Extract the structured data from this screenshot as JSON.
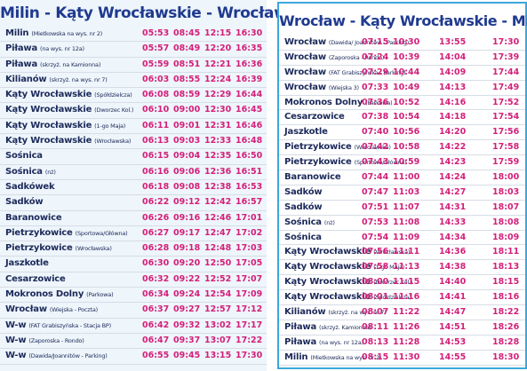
{
  "left": {
    "title": "Milin - Kąty Wrocławskie - Wrocław",
    "rows": [
      {
        "stop": "Milin",
        "detail": "(Mietkowska na wys. nr 2)",
        "times": [
          "05:53",
          "08:45",
          "12:15",
          "16:30"
        ]
      },
      {
        "stop": "Piława",
        "detail": "(na wys. nr 12a)",
        "times": [
          "05:57",
          "08:49",
          "12:20",
          "16:35"
        ]
      },
      {
        "stop": "Piława",
        "detail": "(skrzyż. na Kamionna)",
        "times": [
          "05:59",
          "08:51",
          "12:21",
          "16:36"
        ]
      },
      {
        "stop": "Kilianów",
        "detail": "(skrzyż. na wys. nr 7)",
        "times": [
          "06:03",
          "08:55",
          "12:24",
          "16:39"
        ]
      },
      {
        "stop": "Kąty Wrocławskie",
        "detail": "(Spółdzielcza)",
        "times": [
          "06:08",
          "08:59",
          "12:29",
          "16:44"
        ]
      },
      {
        "stop": "Kąty Wrocławskie",
        "detail": "(Dworzec Kol.)",
        "times": [
          "06:10",
          "09:00",
          "12:30",
          "16:45"
        ]
      },
      {
        "stop": "Kąty Wrocławskie",
        "detail": "(1-go Maja)",
        "times": [
          "06:11",
          "09:01",
          "12:31",
          "16:46"
        ]
      },
      {
        "stop": "Kąty Wrocławskie",
        "detail": "(Wrocławska)",
        "times": [
          "06:13",
          "09:03",
          "12:33",
          "16:48"
        ]
      },
      {
        "stop": "Sośnica",
        "times": [
          "06:15",
          "09:04",
          "12:35",
          "16:50"
        ]
      },
      {
        "stop": "Sośnica",
        "detail": "(nż)",
        "times": [
          "06:16",
          "09:06",
          "12:36",
          "16:51"
        ]
      },
      {
        "stop": "Sadkówek",
        "times": [
          "06:18",
          "09:08",
          "12:38",
          "16:53"
        ]
      },
      {
        "stop": "Sadków",
        "times": [
          "06:22",
          "09:12",
          "12:42",
          "16:57"
        ]
      },
      {
        "stop": "Baranowice",
        "times": [
          "06:26",
          "09:16",
          "12:46",
          "17:01"
        ]
      },
      {
        "stop": "Pietrzykowice",
        "detail": "(Sportowa/Główna)",
        "times": [
          "06:27",
          "09:17",
          "12:47",
          "17:02"
        ]
      },
      {
        "stop": "Pietrzykowice",
        "detail": "(Wrocławska)",
        "times": [
          "06:28",
          "09:18",
          "12:48",
          "17:03"
        ]
      },
      {
        "stop": "Jaszkotle",
        "times": [
          "06:30",
          "09:20",
          "12:50",
          "17:05"
        ]
      },
      {
        "stop": "Cesarzowice",
        "times": [
          "06:32",
          "09:22",
          "12:52",
          "17:07"
        ]
      },
      {
        "stop": "Mokronos Dolny",
        "detail": "(Parkowa)",
        "times": [
          "06:34",
          "09:24",
          "12:54",
          "17:09"
        ]
      },
      {
        "stop": "Wrocław",
        "detail": "(Wiejska - Poczta)",
        "times": [
          "06:37",
          "09:27",
          "12:57",
          "17:12"
        ]
      },
      {
        "stop": "W-w",
        "detail": "(FAT Grabiszyńska - Stacja BP)",
        "times": [
          "06:42",
          "09:32",
          "13:02",
          "17:17"
        ]
      },
      {
        "stop": "W-w",
        "detail": "(Zaporoska - Rondo)",
        "times": [
          "06:47",
          "09:37",
          "13:07",
          "17:22"
        ]
      },
      {
        "stop": "W-w",
        "detail": "(Dawida/Joannitów - Parking)",
        "times": [
          "06:55",
          "09:45",
          "13:15",
          "17:30"
        ]
      }
    ]
  },
  "right": {
    "title": "Wrocław - Kąty Wrocławskie - Milin",
    "rows": [
      {
        "stop": "Wrocław",
        "detail": "(Dawida/ Joannitów - Parking)",
        "times": [
          "07:15",
          "10:30",
          "13:55",
          "17:30"
        ]
      },
      {
        "stop": "Wrocław",
        "detail": "(Zaporoska - Rondo)",
        "times": [
          "07:24",
          "10:39",
          "14:04",
          "17:39"
        ]
      },
      {
        "stop": "Wrocław",
        "detail": "(FAT Grabiszyńska - Parking)",
        "times": [
          "07:29",
          "10:44",
          "14:09",
          "17:44"
        ]
      },
      {
        "stop": "Wrocław",
        "detail": "(Wiejska 3)",
        "times": [
          "07:33",
          "10:49",
          "14:13",
          "17:49"
        ]
      },
      {
        "stop": "Mokronos Dolny",
        "detail": "(Parkowa)",
        "times": [
          "07:36",
          "10:52",
          "14:16",
          "17:52"
        ]
      },
      {
        "stop": "Cesarzowice",
        "times": [
          "07:38",
          "10:54",
          "14:18",
          "17:54"
        ]
      },
      {
        "stop": "Jaszkotle",
        "times": [
          "07:40",
          "10:56",
          "14:20",
          "17:56"
        ]
      },
      {
        "stop": "Pietrzykowice",
        "detail": "(Wrocławska)",
        "times": [
          "07:42",
          "10:58",
          "14:22",
          "17:58"
        ]
      },
      {
        "stop": "Pietrzykowice",
        "detail": "(Sportowa/Główna)",
        "times": [
          "07:43",
          "10:59",
          "14:23",
          "17:59"
        ]
      },
      {
        "stop": "Baranowice",
        "times": [
          "07:44",
          "11:00",
          "14:24",
          "18:00"
        ]
      },
      {
        "stop": "Sadków",
        "times": [
          "07:47",
          "11:03",
          "14:27",
          "18:03"
        ]
      },
      {
        "stop": "Sadków",
        "times": [
          "07:51",
          "11:07",
          "14:31",
          "18:07"
        ]
      },
      {
        "stop": "Sośnica",
        "detail": "(nż)",
        "times": [
          "07:53",
          "11:08",
          "14:33",
          "18:08"
        ]
      },
      {
        "stop": "Sośnica",
        "times": [
          "07:54",
          "11:09",
          "14:34",
          "18:09"
        ]
      },
      {
        "stop": "Kąty Wrocławskie",
        "detail": "(Wrocławska)",
        "times": [
          "07:56",
          "11:11",
          "14:36",
          "18:11"
        ]
      },
      {
        "stop": "Kąty Wrocławskie",
        "detail": "(1-go Maja)",
        "times": [
          "07:58",
          "11:13",
          "14:38",
          "18:13"
        ]
      },
      {
        "stop": "Kąty Wrocławskie",
        "detail": "(Dworzec Kol.)",
        "times": [
          "08:00",
          "11:15",
          "14:40",
          "18:15"
        ]
      },
      {
        "stop": "Kąty Wrocławskie",
        "detail": "(Spółdzielcza)",
        "times": [
          "08:01",
          "11:16",
          "14:41",
          "18:16"
        ]
      },
      {
        "stop": "Kilianów",
        "detail": "(skrzyż. na wys. nr 7)",
        "times": [
          "08:07",
          "11:22",
          "14:47",
          "18:22"
        ]
      },
      {
        "stop": "Piława",
        "detail": "(skrzyż. Kamionna)",
        "times": [
          "08:11",
          "11:26",
          "14:51",
          "18:26"
        ]
      },
      {
        "stop": "Piława",
        "detail": "(na wys. nr 12a)",
        "times": [
          "08:13",
          "11:28",
          "14:53",
          "18:28"
        ]
      },
      {
        "stop": "Milin",
        "detail": "(Mietkowska na wys. nr 2)",
        "times": [
          "08:15",
          "11:30",
          "14:55",
          "18:30"
        ]
      }
    ]
  }
}
